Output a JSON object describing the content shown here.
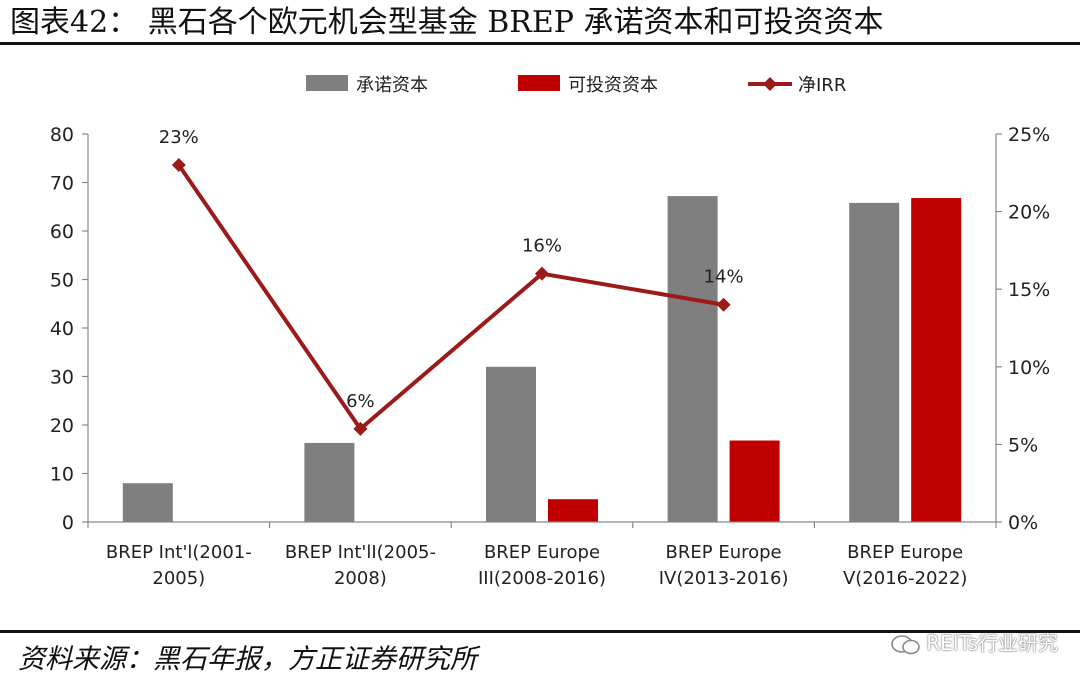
{
  "header": {
    "title": "图表42：  黑石各个欧元机会型基金 BREP 承诺资本和可投资资本"
  },
  "footer": {
    "source": "资料来源：黑石年报，方正证券研究所",
    "watermark": "REITs行业研究"
  },
  "chart_data": {
    "type": "bar",
    "title": "",
    "categories": [
      [
        "BREP Int'l(2001-",
        "2005)"
      ],
      [
        "BREP Int'lI(2005-",
        "2008)"
      ],
      [
        "BREP Europe",
        "III(2008-2016)"
      ],
      [
        "BREP Europe",
        "IV(2013-2016)"
      ],
      [
        "BREP Europe",
        "V(2016-2022)"
      ]
    ],
    "series": [
      {
        "name": "承诺资本",
        "kind": "bar",
        "color": "#7f7f7f",
        "values": [
          8,
          16.3,
          32,
          67.2,
          65.8
        ]
      },
      {
        "name": "可投资资本",
        "kind": "bar",
        "color": "#c00000",
        "values": [
          null,
          null,
          4.7,
          16.8,
          66.8
        ]
      },
      {
        "name": "净IRR",
        "kind": "line",
        "axis": "right",
        "color": "#9b1b1b",
        "values": [
          23,
          6,
          16,
          14,
          null
        ]
      }
    ],
    "line_labels": [
      "23%",
      "6%",
      "16%",
      "14%"
    ],
    "ylim": [
      0,
      80
    ],
    "yticks": [
      "0",
      "10",
      "20",
      "30",
      "40",
      "50",
      "60",
      "70",
      "80"
    ],
    "y2lim": [
      0,
      25
    ],
    "y2ticks": [
      "0%",
      "5%",
      "10%",
      "15%",
      "20%",
      "25%"
    ],
    "legend_position": "top-center",
    "grid": false
  }
}
